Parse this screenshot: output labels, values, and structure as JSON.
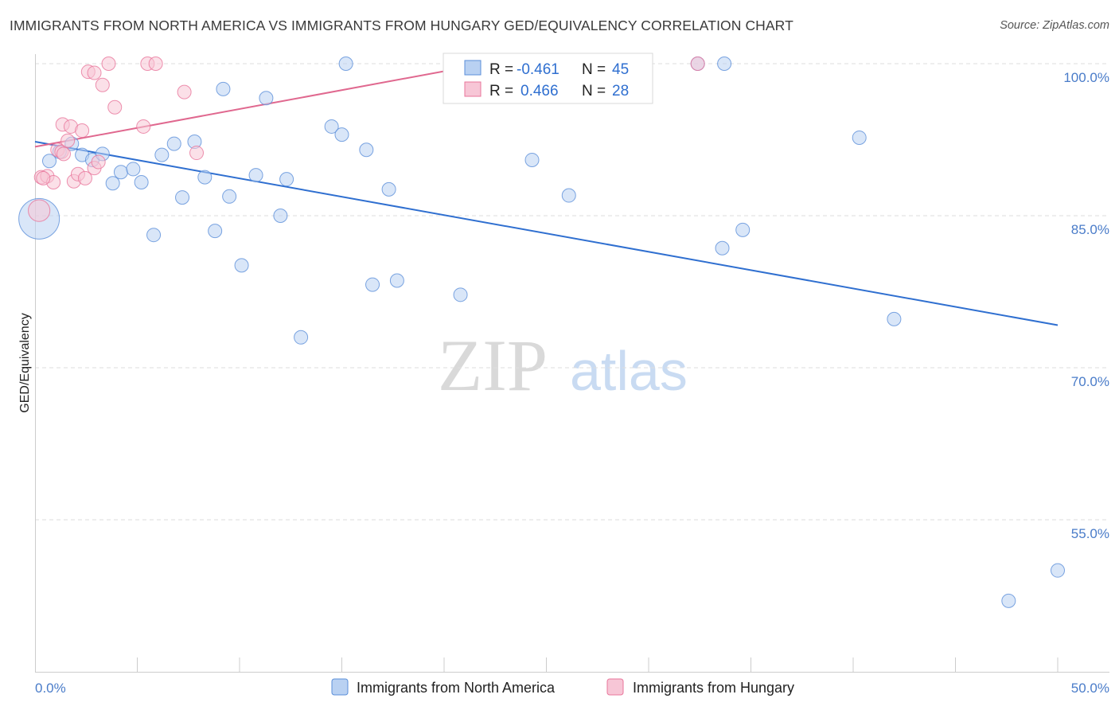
{
  "title": "IMMIGRANTS FROM NORTH AMERICA VS IMMIGRANTS FROM HUNGARY GED/EQUIVALENCY CORRELATION CHART",
  "source": "Source: ZipAtlas.com",
  "watermark": {
    "zip": "ZIP",
    "atlas": "atlas"
  },
  "colors": {
    "blue": "#5b8fd9",
    "blue_fill": "#b9d1f2",
    "blue_line": "#2f6fd0",
    "pink": "#e9759b",
    "pink_fill": "#f7c6d6",
    "pink_line": "#e0688f"
  },
  "stats_legend": {
    "blue": {
      "r_label": "R = ",
      "r_value": "-0.461",
      "n_label": "N = ",
      "n_value": "45"
    },
    "pink": {
      "r_label": "R = ",
      "r_value": "0.466",
      "n_label": "N = ",
      "n_value": "28"
    }
  },
  "chart_data": {
    "type": "scatter",
    "ylabel": "GED/Equivalency",
    "xlabel": "",
    "xlim": [
      0,
      50
    ],
    "ylim": [
      40,
      101.5
    ],
    "x_tick_labels": [
      "0.0%",
      "50.0%"
    ],
    "y_ticks": [
      100,
      85,
      70,
      55
    ],
    "y_tick_labels": [
      "100.0%",
      "85.0%",
      "70.0%",
      "55.0%"
    ],
    "grid": "horizontal dashed",
    "legend_position": "bottom-center",
    "series": [
      {
        "name": "Immigrants from North America",
        "color": "#5b8fd9",
        "trend": {
          "x": [
            0,
            50
          ],
          "y": [
            92.3,
            74.2
          ]
        },
        "points": [
          [
            0.2,
            84.7,
            3
          ],
          [
            0.7,
            90.4,
            1
          ],
          [
            1.2,
            91.3,
            1
          ],
          [
            1.8,
            92.1,
            1
          ],
          [
            2.3,
            91.0,
            1
          ],
          [
            2.8,
            90.5,
            1
          ],
          [
            3.3,
            91.1,
            1
          ],
          [
            3.8,
            88.2,
            1
          ],
          [
            4.2,
            89.3,
            1
          ],
          [
            4.8,
            89.6,
            1
          ],
          [
            5.2,
            88.3,
            1
          ],
          [
            5.8,
            83.1,
            1
          ],
          [
            6.2,
            91.0,
            1
          ],
          [
            6.8,
            92.1,
            1
          ],
          [
            7.2,
            86.8,
            1
          ],
          [
            7.8,
            92.3,
            1
          ],
          [
            8.3,
            88.8,
            1
          ],
          [
            8.8,
            83.5,
            1
          ],
          [
            9.2,
            97.5,
            1
          ],
          [
            9.5,
            86.9,
            1
          ],
          [
            10.1,
            80.1,
            1
          ],
          [
            10.8,
            89.0,
            1
          ],
          [
            11.3,
            96.6,
            1
          ],
          [
            12.0,
            85.0,
            1
          ],
          [
            12.3,
            88.6,
            1
          ],
          [
            13.0,
            73.0,
            1
          ],
          [
            14.5,
            93.8,
            1
          ],
          [
            15.0,
            93.0,
            1
          ],
          [
            15.2,
            100.0,
            1
          ],
          [
            16.2,
            91.5,
            1
          ],
          [
            16.5,
            78.2,
            1
          ],
          [
            17.3,
            87.6,
            1
          ],
          [
            17.7,
            78.6,
            1
          ],
          [
            20.8,
            77.2,
            1
          ],
          [
            24.3,
            90.5,
            1
          ],
          [
            26.1,
            87.0,
            1
          ],
          [
            29.8,
            100.0,
            1
          ],
          [
            32.4,
            100.0,
            1
          ],
          [
            33.6,
            81.8,
            1
          ],
          [
            33.7,
            100.0,
            1
          ],
          [
            34.6,
            83.6,
            1
          ],
          [
            40.3,
            92.7,
            1
          ],
          [
            42.0,
            74.8,
            1
          ],
          [
            47.6,
            47.0,
            1
          ],
          [
            50.0,
            50.0,
            1
          ]
        ]
      },
      {
        "name": "Immigrants from Hungary",
        "color": "#e9759b",
        "trend": {
          "x": [
            0,
            22.0
          ],
          "y": [
            91.8,
            100.0
          ]
        },
        "points": [
          [
            0.2,
            85.5,
            1.6
          ],
          [
            0.3,
            88.8,
            1
          ],
          [
            0.6,
            88.9,
            1
          ],
          [
            0.9,
            88.3,
            1
          ],
          [
            1.1,
            91.5,
            1
          ],
          [
            1.3,
            91.3,
            1
          ],
          [
            1.35,
            94.0,
            1
          ],
          [
            1.6,
            92.4,
            1
          ],
          [
            1.75,
            93.8,
            1
          ],
          [
            1.9,
            88.4,
            1
          ],
          [
            2.1,
            89.1,
            1
          ],
          [
            2.3,
            93.4,
            1
          ],
          [
            2.45,
            88.7,
            1
          ],
          [
            2.9,
            89.7,
            1
          ],
          [
            3.1,
            90.3,
            1
          ],
          [
            2.6,
            99.2,
            1
          ],
          [
            2.9,
            99.1,
            1
          ],
          [
            3.3,
            97.9,
            1
          ],
          [
            3.6,
            100.0,
            1
          ],
          [
            3.9,
            95.7,
            1
          ],
          [
            5.3,
            93.8,
            1
          ],
          [
            5.5,
            100.0,
            1
          ],
          [
            5.9,
            100.0,
            1
          ],
          [
            7.3,
            97.2,
            1
          ],
          [
            7.9,
            91.2,
            1
          ],
          [
            32.4,
            100.0,
            1
          ],
          [
            0.4,
            88.7,
            1
          ],
          [
            1.4,
            91.1,
            1
          ]
        ]
      }
    ]
  }
}
